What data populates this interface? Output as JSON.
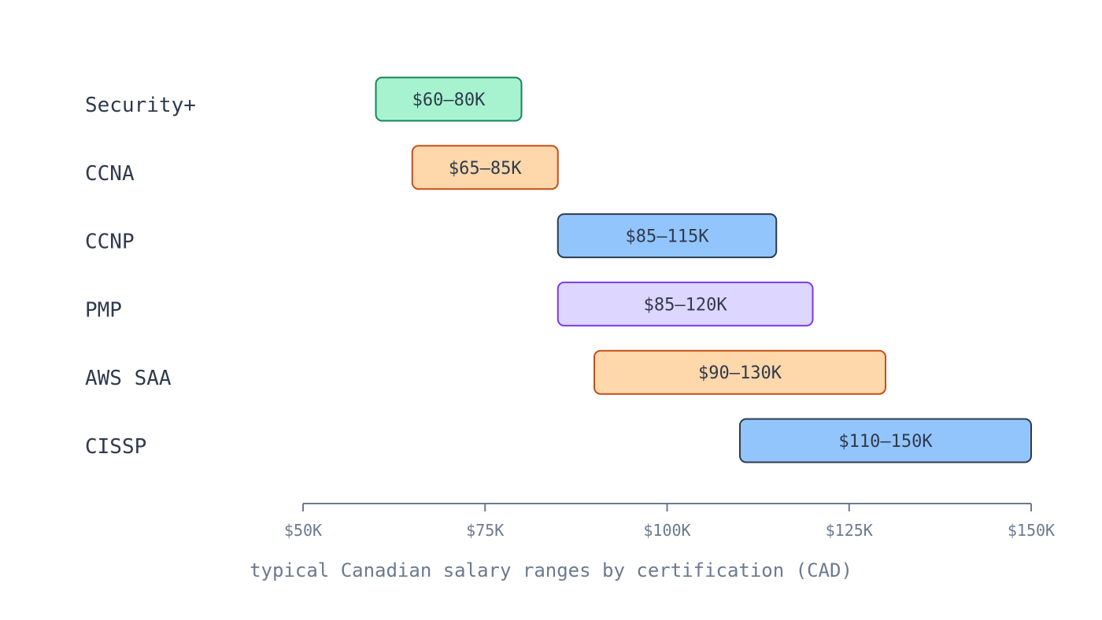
{
  "chart_data": {
    "type": "bar",
    "orientation": "horizontal-range",
    "title": "",
    "xlabel": "typical Canadian salary ranges by certification (CAD)",
    "ylabel": "",
    "xlim": [
      50,
      150
    ],
    "x_ticks": [
      {
        "value": 50,
        "label": "$50K"
      },
      {
        "value": 75,
        "label": "$75K"
      },
      {
        "value": 100,
        "label": "$100K"
      },
      {
        "value": 125,
        "label": "$125K"
      },
      {
        "value": 150,
        "label": "$150K"
      }
    ],
    "grid": false,
    "legend": "none",
    "categories": [
      "Security+",
      "CCNA",
      "CCNP",
      "PMP",
      "AWS SAA",
      "CISSP"
    ],
    "ranges": [
      {
        "category": "Security+",
        "low": 60,
        "high": 80,
        "label": "$60–80K",
        "fill": "#a7f3d0",
        "stroke": "#15855b"
      },
      {
        "category": "CCNA",
        "low": 65,
        "high": 85,
        "label": "$65–85K",
        "fill": "#fed7aa",
        "stroke": "#c2501a"
      },
      {
        "category": "CCNP",
        "low": 85,
        "high": 115,
        "label": "$85–115K",
        "fill": "#93c5fd",
        "stroke": "#2f3a4c"
      },
      {
        "category": "PMP",
        "low": 85,
        "high": 120,
        "label": "$85–120K",
        "fill": "#ddd6fe",
        "stroke": "#7c3aed"
      },
      {
        "category": "AWS SAA",
        "low": 90,
        "high": 130,
        "label": "$90–130K",
        "fill": "#fed7aa",
        "stroke": "#c2501a"
      },
      {
        "category": "CISSP",
        "low": 110,
        "high": 150,
        "label": "$110–150K",
        "fill": "#93c5fd",
        "stroke": "#2f3a4c"
      }
    ],
    "colors": {
      "axis": "#6b7a8f",
      "text": "#2f3a4c"
    }
  }
}
